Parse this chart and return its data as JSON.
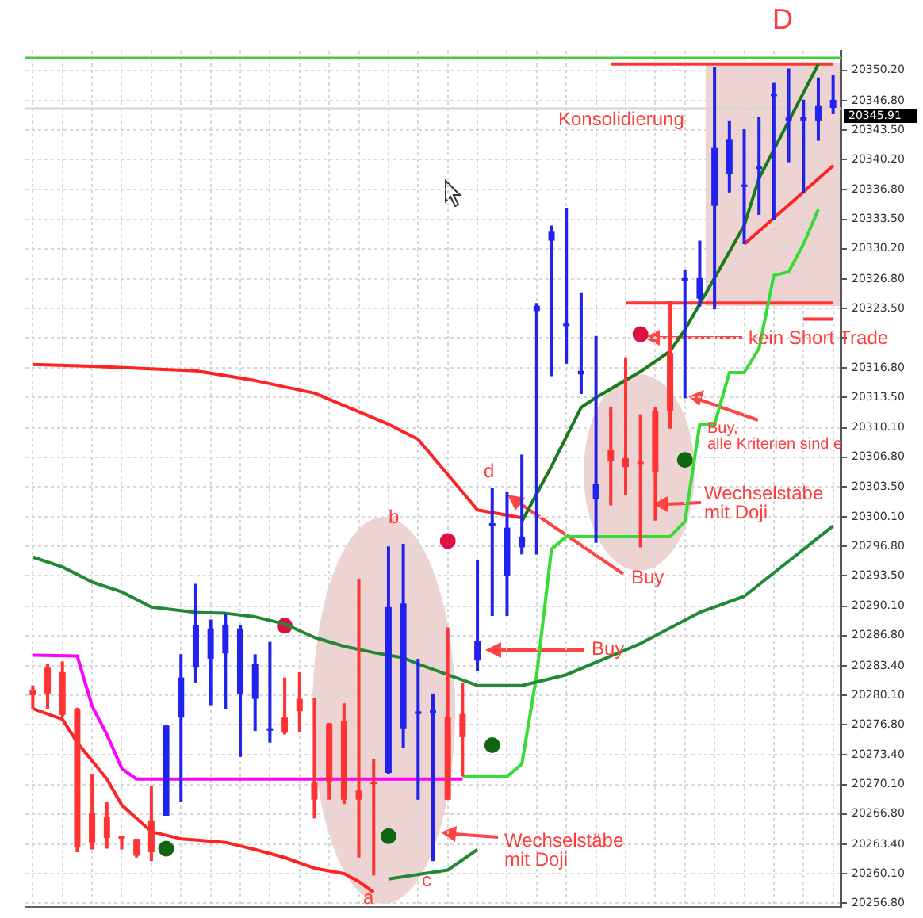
{
  "chart_data": {
    "type": "candlestick",
    "categories": [
      null,
      null,
      null,
      null,
      null,
      null,
      null,
      null,
      null,
      null,
      null,
      null,
      null,
      null,
      null,
      null,
      null,
      null,
      null,
      null,
      null,
      null,
      null,
      null,
      null,
      null,
      null,
      null,
      null,
      null,
      null,
      null,
      null,
      null,
      null,
      null,
      null,
      null,
      null,
      null,
      null,
      null,
      null,
      null,
      null,
      null,
      null,
      null,
      null,
      null,
      null,
      null,
      null,
      null,
      null
    ],
    "ohlc": [
      [
        20280.7,
        20281.2,
        20278.6,
        20280.1
      ],
      [
        20283.2,
        20283.6,
        20278.6,
        20280.3
      ],
      [
        20282.7,
        20283.9,
        20277.7,
        20277.9
      ],
      [
        20278.6,
        20278.7,
        20262.5,
        20263.1
      ],
      [
        20266.9,
        20271.3,
        20262.8,
        20263.6
      ],
      [
        20266.4,
        20268.1,
        20262.9,
        20264.1
      ],
      [
        20264.3,
        20264.3,
        20262.8,
        20264.0
      ],
      [
        20264.0,
        20264.0,
        20261.9,
        20262.1
      ],
      [
        20266.0,
        20269.9,
        20261.5,
        20262.5
      ],
      [
        20266.6,
        20276.7,
        20266.6,
        20276.7
      ],
      [
        20277.6,
        20284.7,
        20268.1,
        20282.1
      ],
      [
        20283.2,
        20292.6,
        20281.5,
        20288.0
      ],
      [
        20284.2,
        20288.6,
        20279.0,
        20287.6
      ],
      [
        20284.8,
        20289.2,
        20278.6,
        20288.0
      ],
      [
        20280.2,
        20288.0,
        20273.2,
        20287.6
      ],
      [
        20279.7,
        20284.7,
        20276.1,
        20283.6
      ],
      [
        20276.3,
        20286.1,
        20274.8,
        20276.4
      ],
      [
        20277.6,
        20282.1,
        20275.7,
        20275.9
      ],
      [
        20279.7,
        20282.7,
        20276.0,
        20278.3
      ],
      [
        20270.4,
        20279.8,
        20266.3,
        20268.4
      ],
      [
        20276.9,
        20277.0,
        20268.4,
        20270.4
      ],
      [
        20277.2,
        20279.2,
        20267.9,
        20268.4
      ],
      [
        20269.4,
        20293.1,
        20261.9,
        20268.4
      ],
      [
        20270.4,
        20272.9,
        20259.9,
        20270.3
      ],
      [
        20271.4,
        20296.8,
        20271.3,
        20290.0
      ],
      [
        20276.4,
        20297.1,
        20274.2,
        20290.4
      ],
      [
        20278.0,
        20284.2,
        20268.4,
        20278.3
      ],
      [
        20278.3,
        20280.3,
        20261.5,
        20278.4
      ],
      [
        20277.7,
        20287.7,
        20268.4,
        20268.4
      ],
      [
        20278.0,
        20281.5,
        20271.0,
        20275.4
      ],
      [
        20284.0,
        20295.3,
        20282.8,
        20286.2
      ],
      [
        20299.1,
        20303.4,
        20289.0,
        20299.4
      ],
      [
        20293.5,
        20302.9,
        20289.0,
        20298.9
      ],
      [
        20296.7,
        20307.1,
        20295.9,
        20297.9
      ],
      [
        20323.2,
        20324.1,
        20295.9,
        20323.8
      ],
      [
        20331.1,
        20332.8,
        20315.9,
        20332.1
      ],
      [
        20321.5,
        20334.7,
        20317.3,
        20321.8
      ],
      [
        20316.1,
        20325.3,
        20313.9,
        20316.5
      ],
      [
        20302.1,
        20320.4,
        20297.2,
        20303.8
      ],
      [
        20307.6,
        20312.4,
        20301.4,
        20306.4
      ],
      [
        20306.7,
        20318.0,
        20302.6,
        20305.7
      ],
      [
        20306.3,
        20311.6,
        20296.7,
        20306.2
      ],
      [
        20312.0,
        20312.4,
        20299.7,
        20305.2
      ],
      [
        20318.5,
        20324.3,
        20310.0,
        20312.0
      ],
      [
        20326.6,
        20327.8,
        20313.4,
        20326.9
      ],
      [
        20324.6,
        20331.1,
        20323.7,
        20326.9
      ],
      [
        20335.0,
        20350.6,
        20323.4,
        20341.5
      ],
      [
        20338.6,
        20344.5,
        20336.5,
        20342.5
      ],
      [
        20337.2,
        20343.6,
        20330.7,
        20337.4
      ],
      [
        20339.2,
        20345.0,
        20334.0,
        20339.4
      ],
      [
        20347.3,
        20348.8,
        20333.4,
        20347.6
      ],
      [
        20344.5,
        20350.4,
        20339.9,
        20344.9
      ],
      [
        20344.5,
        20346.9,
        20336.4,
        20345.0
      ],
      [
        20344.5,
        20349.4,
        20342.3,
        20346.2
      ],
      [
        20346.0,
        20349.7,
        20345.3,
        20346.9
      ]
    ],
    "colors": [
      "#ff3333",
      "#ff3333",
      "#ff3333",
      "#ff3333",
      "#ff3333",
      "#ff3333",
      "#ff3333",
      "#ff3333",
      "#ff3333",
      "#2222ee",
      "#2222ee",
      "#2222ee",
      "#2222ee",
      "#2222ee",
      "#2222ee",
      "#2222ee",
      "#2222ee",
      "#ff3333",
      "#ff3333",
      "#ff3333",
      "#ff3333",
      "#ff3333",
      "#ff3333",
      "#ff3333",
      "#2222ee",
      "#2222ee",
      "#2222ee",
      "#2222ee",
      "#ff3333",
      "#ff3333",
      "#2222ee",
      "#2222ee",
      "#2222ee",
      "#2222ee",
      "#2222ee",
      "#2222ee",
      "#2222ee",
      "#2222ee",
      "#2222ee",
      "#ff3333",
      "#ff3333",
      "#ff3333",
      "#ff3333",
      "#ff3333",
      "#2222ee",
      "#2222ee",
      "#2222ee",
      "#2222ee",
      "#2222ee",
      "#2222ee",
      "#2222ee",
      "#2222ee",
      "#2222ee",
      "#2222ee",
      "#2222ee"
    ],
    "series": [
      {
        "type": "line",
        "color": "#ff2222",
        "values": [
          20317.2,
          null,
          null,
          null,
          20317.0,
          null,
          null,
          null,
          null,
          null,
          null,
          20316.5,
          null,
          null,
          null,
          20315.4,
          null,
          null,
          null,
          20314.0,
          null,
          null,
          null,
          null,
          20310.5,
          null,
          20308.8,
          null,
          null,
          20302.9,
          20300.9,
          null,
          null,
          20300.0,
          null,
          null,
          null,
          null,
          null,
          null,
          null,
          null,
          null,
          null,
          null,
          null,
          null,
          null,
          null,
          null,
          null,
          null,
          null,
          null,
          null
        ]
      },
      {
        "type": "line",
        "color": "#1a7a1a",
        "values": [
          null,
          null,
          null,
          null,
          null,
          null,
          null,
          null,
          null,
          null,
          null,
          null,
          null,
          null,
          null,
          null,
          null,
          null,
          null,
          null,
          null,
          null,
          null,
          null,
          null,
          null,
          null,
          null,
          null,
          null,
          null,
          null,
          null,
          20299.6,
          null,
          20305.8,
          null,
          20312.4,
          20313.5,
          null,
          null,
          20316.4,
          null,
          20318.7,
          20321.1,
          null,
          20326.9,
          null,
          20332.8,
          20338.1,
          null,
          null,
          null,
          20350.9,
          null
        ]
      },
      {
        "type": "line",
        "color": "#ff2222",
        "values": [
          20278.6,
          null,
          20277.4,
          20274.8,
          null,
          20270.7,
          20267.8,
          null,
          20264.8,
          null,
          20264.0,
          null,
          null,
          20263.6,
          null,
          20262.8,
          null,
          20261.9,
          null,
          20260.7,
          null,
          20260.1,
          20259.2,
          20258.0,
          null,
          null,
          null,
          null,
          null,
          null,
          null,
          null,
          null,
          null,
          null,
          null,
          null,
          null,
          null,
          null,
          null,
          null,
          null,
          null,
          null,
          null,
          null,
          null,
          null,
          null,
          null,
          null,
          null,
          null,
          null
        ]
      },
      {
        "type": "line",
        "color": "#228833",
        "values": [
          null,
          null,
          null,
          null,
          null,
          null,
          null,
          null,
          null,
          null,
          null,
          null,
          null,
          null,
          null,
          null,
          null,
          null,
          null,
          null,
          null,
          null,
          null,
          null,
          20259.5,
          null,
          null,
          null,
          20260.5,
          null,
          20262.8,
          null,
          null,
          null,
          null,
          null,
          null,
          null,
          null,
          null,
          null,
          null,
          null,
          null,
          null,
          null,
          null,
          null,
          null,
          null,
          null,
          null,
          null,
          null,
          null
        ]
      },
      {
        "type": "line",
        "color": "#ff00ff",
        "values": [
          20284.6,
          null,
          null,
          20284.5,
          20278.9,
          20275.7,
          20271.9,
          20270.7,
          null,
          null,
          null,
          null,
          null,
          null,
          null,
          null,
          null,
          null,
          null,
          null,
          null,
          null,
          null,
          null,
          null,
          null,
          null,
          null,
          null,
          20270.7,
          null,
          null,
          null,
          null,
          null,
          null,
          null,
          null,
          null,
          null,
          null,
          null,
          null,
          null,
          null,
          null,
          null,
          null,
          null,
          null,
          null,
          null,
          null,
          null,
          null
        ]
      },
      {
        "type": "line",
        "color": "#228833",
        "values": [
          20295.6,
          null,
          20294.5,
          null,
          20292.8,
          null,
          20291.7,
          null,
          20290.0,
          null,
          null,
          20289.4,
          null,
          20289.3,
          null,
          20288.9,
          null,
          20288.1,
          null,
          20286.6,
          null,
          20285.6,
          null,
          20284.9,
          null,
          20284.3,
          20283.6,
          null,
          null,
          20281.8,
          20281.2,
          null,
          null,
          20281.2,
          null,
          null,
          20282.4,
          null,
          null,
          null,
          null,
          20285.9,
          null,
          null,
          null,
          20289.4,
          null,
          null,
          20291.2,
          null,
          null,
          null,
          null,
          null,
          20299.1
        ]
      },
      {
        "type": "line",
        "color": "#33dd33",
        "values": [
          null,
          null,
          null,
          null,
          null,
          null,
          null,
          null,
          null,
          null,
          null,
          null,
          null,
          null,
          null,
          null,
          null,
          null,
          null,
          null,
          null,
          null,
          null,
          null,
          null,
          null,
          null,
          null,
          null,
          20271.0,
          null,
          null,
          20271.0,
          20272.4,
          20282.4,
          20296.5,
          20297.9,
          null,
          null,
          null,
          null,
          null,
          null,
          20297.9,
          20299.6,
          20310.5,
          20310.5,
          20316.3,
          20316.3,
          20319.0,
          20327.2,
          20327.6,
          20330.7,
          20334.6,
          null
        ]
      },
      {
        "type": "line",
        "color": "#ff3333",
        "values": [
          null,
          null,
          null,
          null,
          null,
          null,
          null,
          null,
          null,
          null,
          null,
          null,
          null,
          null,
          null,
          null,
          null,
          null,
          null,
          null,
          null,
          null,
          null,
          null,
          null,
          null,
          null,
          null,
          null,
          null,
          null,
          null,
          null,
          null,
          null,
          null,
          null,
          null,
          null,
          20350.9,
          null,
          null,
          null,
          null,
          null,
          null,
          null,
          null,
          null,
          null,
          null,
          null,
          null,
          null,
          20350.9
        ]
      },
      {
        "type": "line",
        "color": "#ff3333",
        "values": [
          null,
          null,
          null,
          null,
          null,
          null,
          null,
          null,
          null,
          null,
          null,
          null,
          null,
          null,
          null,
          null,
          null,
          null,
          null,
          null,
          null,
          null,
          null,
          null,
          null,
          null,
          null,
          null,
          null,
          null,
          null,
          null,
          null,
          null,
          null,
          null,
          null,
          null,
          null,
          null,
          20324.1,
          null,
          null,
          null,
          null,
          null,
          null,
          null,
          null,
          null,
          null,
          null,
          null,
          null,
          20324.1
        ]
      },
      {
        "type": "line",
        "color": "#ff3333",
        "values": [
          null,
          null,
          null,
          null,
          null,
          null,
          null,
          null,
          null,
          null,
          null,
          null,
          null,
          null,
          null,
          null,
          null,
          null,
          null,
          null,
          null,
          null,
          null,
          null,
          null,
          null,
          null,
          null,
          null,
          null,
          null,
          null,
          null,
          null,
          null,
          null,
          null,
          null,
          null,
          null,
          null,
          null,
          null,
          null,
          null,
          null,
          null,
          null,
          null,
          null,
          null,
          null,
          20322.3,
          null,
          20322.3
        ]
      },
      {
        "type": "line",
        "color": "#ff2222",
        "values": [
          null,
          null,
          null,
          null,
          null,
          null,
          null,
          null,
          null,
          null,
          null,
          null,
          null,
          null,
          null,
          null,
          null,
          null,
          null,
          null,
          null,
          null,
          null,
          null,
          null,
          null,
          null,
          null,
          null,
          null,
          null,
          null,
          null,
          null,
          null,
          null,
          null,
          null,
          null,
          null,
          null,
          null,
          null,
          null,
          null,
          null,
          null,
          null,
          20330.7,
          null,
          null,
          null,
          null,
          null,
          20339.5
        ]
      },
      {
        "type": "scatter",
        "marker": "circle",
        "color": "#dd1144",
        "values": [
          null,
          null,
          null,
          null,
          null,
          null,
          null,
          null,
          null,
          null,
          null,
          null,
          null,
          null,
          null,
          null,
          null,
          20287.9,
          null,
          null,
          null,
          null,
          null,
          null,
          null,
          null,
          null,
          null,
          20297.4,
          null,
          null,
          null,
          null,
          null,
          null,
          null,
          null,
          null,
          null,
          null,
          null,
          20320.6,
          null,
          null,
          null,
          null,
          null,
          null,
          null,
          null,
          null,
          null,
          null,
          null,
          null
        ]
      },
      {
        "type": "scatter",
        "marker": "circle",
        "color": "#116611",
        "values": [
          null,
          null,
          null,
          null,
          null,
          null,
          null,
          null,
          null,
          20262.9,
          null,
          null,
          null,
          null,
          null,
          null,
          null,
          null,
          null,
          null,
          null,
          null,
          null,
          null,
          20264.3,
          null,
          null,
          null,
          null,
          null,
          null,
          20274.5,
          null,
          null,
          null,
          null,
          null,
          null,
          null,
          null,
          null,
          null,
          null,
          null,
          20306.5,
          null,
          null,
          null,
          null,
          null,
          null,
          null,
          null,
          null,
          null
        ]
      }
    ],
    "ylim": [
      20256.4,
      20352.4
    ],
    "yticks": [
      {
        "value": 20256.8,
        "label": "20256.80"
      },
      {
        "value": 20260.1,
        "label": "20260.10"
      },
      {
        "value": 20263.4,
        "label": "20263.40"
      },
      {
        "value": 20266.8,
        "label": "20266.80"
      },
      {
        "value": 20270.1,
        "label": "20270.10"
      },
      {
        "value": 20273.4,
        "label": "20273.40"
      },
      {
        "value": 20276.8,
        "label": "20276.80"
      },
      {
        "value": 20280.1,
        "label": "20280.10"
      },
      {
        "value": 20283.4,
        "label": "20283.40"
      },
      {
        "value": 20286.8,
        "label": "20286.80"
      },
      {
        "value": 20290.1,
        "label": "20290.10"
      },
      {
        "value": 20293.5,
        "label": "20293.50"
      },
      {
        "value": 20296.8,
        "label": "20296.80"
      },
      {
        "value": 20300.1,
        "label": "20300.10"
      },
      {
        "value": 20303.5,
        "label": "20303.50"
      },
      {
        "value": 20306.8,
        "label": "20306.80"
      },
      {
        "value": 20310.1,
        "label": "20310.10"
      },
      {
        "value": 20313.5,
        "label": "20313.50"
      },
      {
        "value": 20316.8,
        "label": "20316.80"
      },
      {
        "value": 20320.2,
        "label": null
      },
      {
        "value": 20323.5,
        "label": "20323.50"
      },
      {
        "value": 20326.8,
        "label": "20326.80"
      },
      {
        "value": 20330.2,
        "label": "20330.20"
      },
      {
        "value": 20333.5,
        "label": "20333.50"
      },
      {
        "value": 20336.8,
        "label": "20336.80"
      },
      {
        "value": 20340.2,
        "label": "20340.20"
      },
      {
        "value": 20343.5,
        "label": "20343.50"
      },
      {
        "value": 20346.8,
        "label": "20346.80"
      },
      {
        "value": 20350.2,
        "label": "20350.20"
      }
    ],
    "grid": true,
    "tick_labels": "y",
    "ref_lines": [
      {
        "axis": "y",
        "value": 20351.6,
        "color": "#44cc44"
      },
      {
        "axis": "y",
        "value": 20345.91,
        "label": "20345.91",
        "color": "#d4d4d4"
      }
    ],
    "annotations": [
      "D",
      "Konsolidierung",
      "kein Short Trade",
      "Buy, alle Kriterien sind e",
      "Wechselstäbe mit Doji",
      "Buy",
      "Buy",
      "Wechselstäbe mit Doji",
      "b",
      "d",
      "a",
      "c"
    ]
  }
}
